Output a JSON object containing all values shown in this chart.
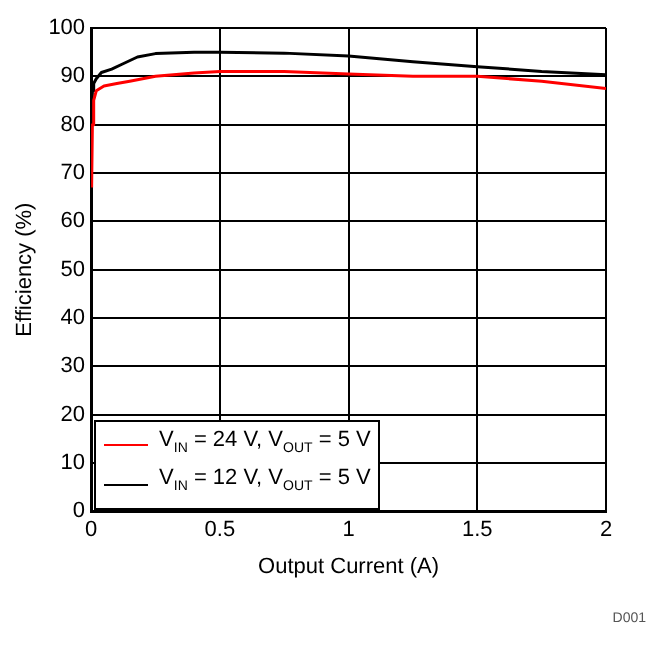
{
  "chart_data": {
    "type": "line",
    "xlabel": "Output Current (A)",
    "ylabel": "Efficiency (%)",
    "xlim": [
      0,
      2
    ],
    "xticks": [
      0,
      0.5,
      1,
      1.5,
      2
    ],
    "ylim": [
      0,
      100
    ],
    "yticks": [
      0,
      10,
      20,
      30,
      40,
      50,
      60,
      70,
      80,
      90,
      100
    ],
    "grid": true,
    "legend": "bottom left",
    "marker": "none",
    "line_style": "solid",
    "annotations": [
      "D001"
    ],
    "series": [
      {
        "name": "V$_{IN}$ = 24 V, V$_{OUT}$ = 5 V",
        "color": "#ff0000",
        "x": [
          0.002,
          0.005,
          0.01,
          0.02,
          0.05,
          0.1,
          0.15,
          0.25,
          0.4,
          0.5,
          0.75,
          1,
          1.25,
          1.5,
          1.75,
          2
        ],
        "values": [
          67,
          80,
          85,
          87,
          88,
          88.5,
          89,
          90,
          90.7,
          91,
          91,
          90.5,
          90,
          90,
          89,
          87.5
        ]
      },
      {
        "name": "V$_{IN}$ = 12 V, V$_{OUT}$ = 5 V",
        "color": "#000000",
        "x": [
          0.002,
          0.005,
          0.01,
          0.02,
          0.04,
          0.08,
          0.12,
          0.18,
          0.25,
          0.4,
          0.5,
          0.75,
          1,
          1.25,
          1.5,
          1.75,
          2
        ],
        "values": [
          80,
          87,
          88.5,
          89.5,
          90.8,
          91.5,
          92.5,
          94,
          94.7,
          95,
          95,
          94.8,
          94.2,
          93,
          92,
          91,
          90.3
        ]
      }
    ]
  }
}
